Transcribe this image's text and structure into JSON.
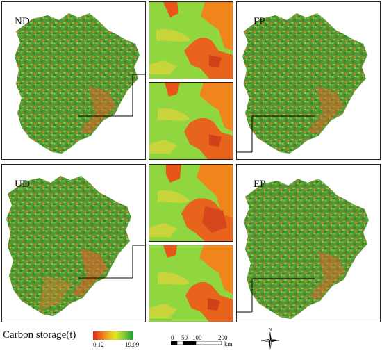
{
  "maps": [
    {
      "label": "ND"
    },
    {
      "label": "FP"
    },
    {
      "label": "UD"
    },
    {
      "label": "EP"
    }
  ],
  "legend": {
    "title": "Carbon storage(t)",
    "min": "0.12",
    "max": "19.09",
    "colors": [
      "#e8211b",
      "#f2a71a",
      "#e4e61a",
      "#7fc93a",
      "#1f9a32"
    ]
  },
  "scale": {
    "ticks": [
      "0",
      "50",
      "100",
      "200"
    ],
    "unit": "km"
  },
  "north": "N"
}
